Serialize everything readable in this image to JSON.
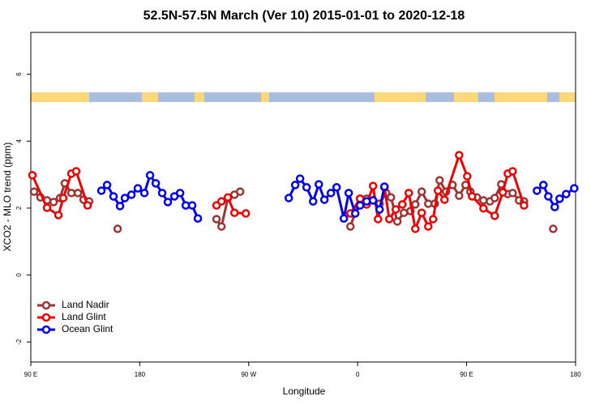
{
  "chart_data": {
    "type": "line",
    "title": "52.5N-57.5N March (Ver 10)   2015-01-01 to 2020-12-18",
    "x_label": "Longitude",
    "y_label": "XCO2 - MLO trend (ppm)",
    "xlim": [
      90,
      540
    ],
    "xticks": [
      {
        "value": 90,
        "label": "90 E"
      },
      180,
      {
        "value": 270,
        "label": "90 W"
      },
      {
        "value": 360,
        "label": "0"
      },
      {
        "value": 450,
        "label": "90 E"
      },
      {
        "value": 540,
        "label": "180"
      }
    ],
    "ylim": [
      -2.6,
      7.25
    ],
    "yticks": [
      -2,
      0,
      2,
      4,
      6
    ],
    "grid": false,
    "legend": "bottom-left",
    "series": [
      {
        "name": "Land Nadir",
        "color": "#9b3434",
        "x": [
          92.7,
          98.0,
          103.4,
          108.8,
          114.1,
          118.1,
          123.5,
          128.9,
          133.6,
          138.2,
          null,
          161.7,
          null,
          243.4,
          247.5,
          252.8,
          258.2,
          262.9,
          null,
          354.0,
          362.0,
          367.4,
          372.7,
          378.1,
          383.5,
          387.5,
          392.8,
          398.2,
          403.6,
          407.6,
          412.9,
          418.3,
          423.7,
          427.7,
          433.0,
          438.4,
          443.8,
          449.1,
          453.1,
          458.5,
          463.9,
          469.2,
          473.2,
          478.6,
          484.0,
          488.0,
          493.3,
          497.4,
          null,
          521.5
        ],
        "values": [
          2.49,
          2.32,
          2.23,
          2.18,
          2.3,
          2.74,
          2.45,
          2.45,
          2.25,
          2.2,
          null,
          1.38,
          null,
          1.67,
          1.45,
          2.3,
          2.4,
          2.49,
          null,
          1.45,
          2.28,
          2.28,
          2.23,
          2.13,
          2.45,
          2.32,
          1.6,
          1.86,
          1.91,
          2.11,
          2.49,
          2.13,
          2.13,
          2.83,
          2.49,
          2.69,
          2.37,
          2.69,
          2.49,
          2.32,
          2.23,
          2.2,
          2.3,
          2.71,
          2.42,
          2.45,
          2.23,
          2.2,
          null,
          1.38
        ]
      },
      {
        "name": "Land Glint",
        "color": "#ee0000",
        "x": [
          91.3,
          103.4,
          112.8,
          116.8,
          123.5,
          127.5,
          136.9,
          null,
          243.4,
          247.5,
          252.8,
          258.2,
          267.6,
          null,
          354.0,
          362.0,
          367.4,
          372.7,
          376.8,
          382.1,
          386.1,
          391.5,
          396.9,
          402.2,
          407.6,
          412.9,
          418.3,
          422.3,
          426.3,
          431.7,
          443.8,
          450.5,
          454.5,
          463.9,
          473.2,
          479.9,
          484.0,
          488.0,
          497.4
        ],
        "values": [
          2.98,
          2.01,
          1.79,
          2.3,
          3.03,
          3.1,
          2.08,
          null,
          2.08,
          2.2,
          2.32,
          1.86,
          1.84,
          null,
          1.84,
          2.28,
          2.11,
          2.66,
          1.67,
          2.62,
          1.67,
          1.96,
          2.11,
          2.45,
          1.38,
          1.86,
          1.45,
          1.67,
          2.52,
          2.25,
          3.58,
          2.95,
          2.35,
          1.99,
          1.77,
          2.47,
          3.03,
          3.1,
          2.08
        ]
      },
      {
        "name": "Ocean Glint",
        "color": "#0000ee",
        "x": [
          148.3,
          153.0,
          158.3,
          163.7,
          167.7,
          173.1,
          178.4,
          183.8,
          188.5,
          193.2,
          198.5,
          203.2,
          208.6,
          213.3,
          218.0,
          223.3,
          228.0,
          null,
          303.1,
          308.4,
          312.4,
          317.8,
          323.2,
          327.9,
          332.5,
          337.9,
          342.6,
          348.6,
          352.6,
          358.0,
          362.0,
          367.4,
          372.7,
          378.1,
          382.1,
          null,
          508.1,
          513.4,
          517.5,
          522.8,
          526.8,
          532.2,
          538.9
        ],
        "values": [
          2.52,
          2.69,
          2.35,
          2.06,
          2.3,
          2.4,
          2.59,
          2.45,
          2.98,
          2.74,
          2.45,
          2.18,
          2.35,
          2.45,
          2.08,
          2.08,
          1.69,
          null,
          2.3,
          2.69,
          2.88,
          2.62,
          2.2,
          2.71,
          2.25,
          2.45,
          2.62,
          1.69,
          2.45,
          1.84,
          2.08,
          2.2,
          2.23,
          1.96,
          2.64,
          null,
          2.52,
          2.69,
          2.35,
          2.03,
          2.28,
          2.42,
          2.59
        ]
      }
    ]
  }
}
